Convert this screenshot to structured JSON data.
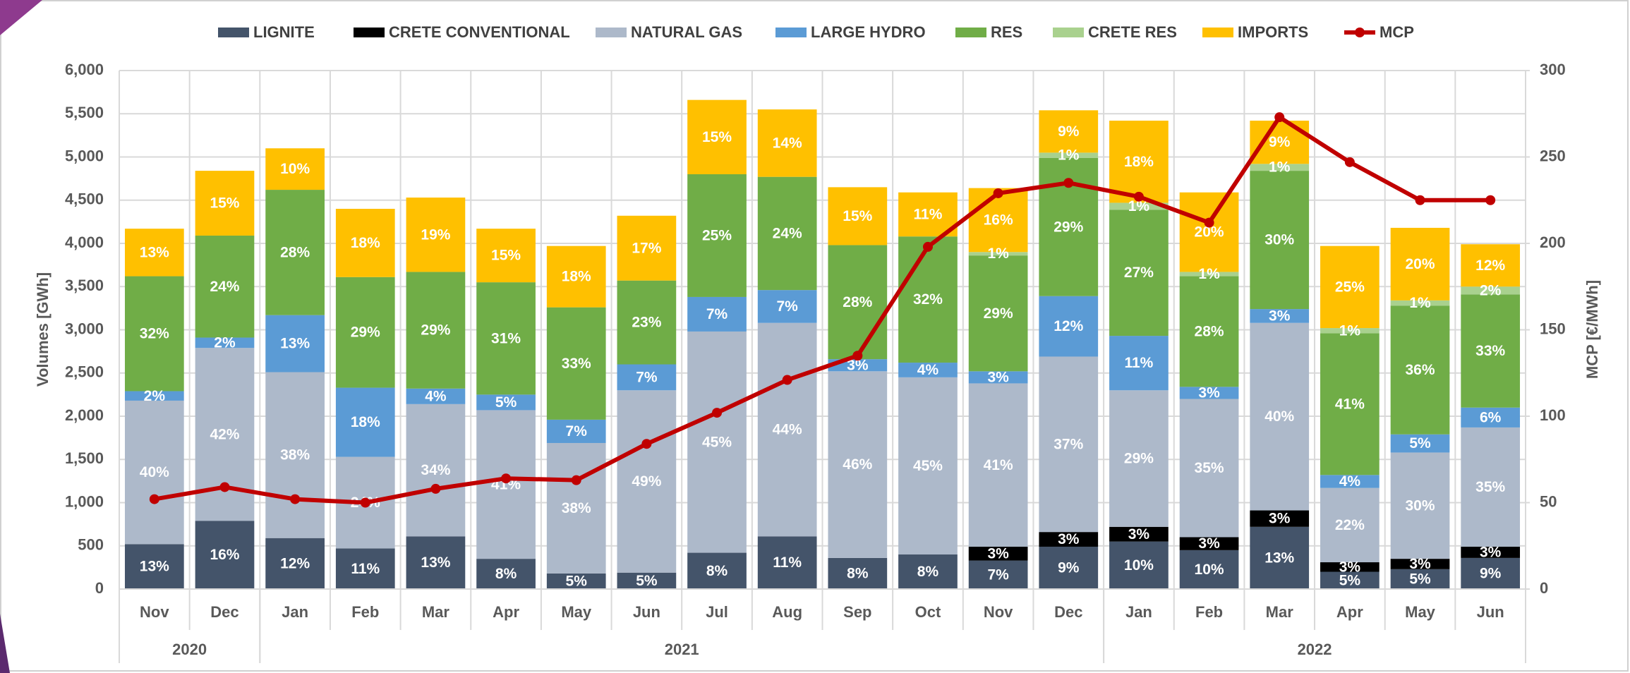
{
  "chart_data": {
    "type": "bar",
    "stacked": true,
    "categories": [
      "Nov",
      "Dec",
      "Jan",
      "Feb",
      "Mar",
      "Apr",
      "May",
      "Jun",
      "Jul",
      "Aug",
      "Sep",
      "Oct",
      "Nov",
      "Dec",
      "Jan",
      "Feb",
      "Mar",
      "Apr",
      "May",
      "Jun"
    ],
    "year_groups": [
      {
        "label": "2020",
        "count": 2
      },
      {
        "label": "2021",
        "count": 12
      },
      {
        "label": "2022",
        "count": 6
      }
    ],
    "ylabel": "Volumes [GWh]",
    "y2label": "MCP [€/MWh]",
    "ylim": [
      0,
      6000
    ],
    "yticks": [
      0,
      {
        "value": 500,
        "label": "500"
      },
      {
        "value": 1000,
        "label": "1,000"
      },
      {
        "value": 1500,
        "label": "1,500"
      },
      {
        "value": 2000,
        "label": "2,000"
      },
      {
        "value": 2500,
        "label": "2,500"
      },
      {
        "value": 3000,
        "label": "3,000"
      },
      {
        "value": 3500,
        "label": "3,500"
      },
      {
        "value": 4000,
        "label": "4,000"
      },
      {
        "value": 4500,
        "label": "4,500"
      },
      {
        "value": 5000,
        "label": "5,000"
      },
      {
        "value": 5500,
        "label": "5,500"
      },
      {
        "value": 6000,
        "label": "6,000"
      }
    ],
    "y2lim": [
      0,
      300
    ],
    "y2ticks": [
      0,
      50,
      100,
      150,
      200,
      250,
      300
    ],
    "grid": true,
    "legend": "top",
    "series": [
      {
        "name": "LIGNITE",
        "color": "#44546a",
        "values": [
          520,
          790,
          590,
          470,
          610,
          350,
          180,
          190,
          420,
          610,
          360,
          400,
          330,
          490,
          550,
          450,
          720,
          200,
          230,
          360
        ],
        "share_labels": [
          "13%",
          "16%",
          "12%",
          "11%",
          "13%",
          "8%",
          "5%",
          "5%",
          "8%",
          "11%",
          "8%",
          "8%",
          "7%",
          "9%",
          "10%",
          "10%",
          "13%",
          "5%",
          "5%",
          "9%"
        ]
      },
      {
        "name": "CRETE CONVENTIONAL",
        "color": "#000000",
        "values": [
          null,
          null,
          null,
          null,
          null,
          null,
          null,
          null,
          null,
          null,
          null,
          null,
          160,
          170,
          170,
          150,
          190,
          110,
          120,
          130
        ],
        "share_labels": [
          null,
          null,
          null,
          null,
          null,
          null,
          null,
          null,
          null,
          null,
          null,
          null,
          "3%",
          "3%",
          "3%",
          "3%",
          "3%",
          "3%",
          "3%",
          "3%"
        ]
      },
      {
        "name": "NATURAL GAS",
        "color": "#adb9ca",
        "values": [
          1660,
          2000,
          1920,
          1060,
          1530,
          1720,
          1510,
          2110,
          2560,
          2470,
          2160,
          2050,
          1890,
          2030,
          1580,
          1600,
          2170,
          860,
          1230,
          1380
        ],
        "share_labels": [
          "40%",
          "42%",
          "38%",
          "24%",
          "34%",
          "41%",
          "38%",
          "49%",
          "45%",
          "44%",
          "46%",
          "45%",
          "41%",
          "37%",
          "29%",
          "35%",
          "40%",
          "22%",
          "30%",
          "35%"
        ]
      },
      {
        "name": "LARGE HYDRO",
        "color": "#5b9bd5",
        "values": [
          110,
          120,
          660,
          800,
          180,
          180,
          270,
          300,
          400,
          380,
          140,
          170,
          140,
          700,
          630,
          140,
          160,
          150,
          210,
          230
        ],
        "share_labels": [
          "2%",
          "2%",
          "13%",
          "18%",
          "4%",
          "5%",
          "7%",
          "7%",
          "7%",
          "7%",
          "3%",
          "4%",
          "3%",
          "12%",
          "11%",
          "3%",
          "3%",
          "4%",
          "5%",
          "6%"
        ]
      },
      {
        "name": "RES",
        "color": "#70ad47",
        "values": [
          1330,
          1180,
          1450,
          1280,
          1350,
          1300,
          1300,
          970,
          1420,
          1310,
          1320,
          1460,
          1340,
          1600,
          1460,
          1280,
          1600,
          1640,
          1490,
          1310
        ],
        "share_labels": [
          "32%",
          "24%",
          "28%",
          "29%",
          "29%",
          "31%",
          "33%",
          "23%",
          "25%",
          "24%",
          "28%",
          "32%",
          "29%",
          "29%",
          "27%",
          "28%",
          "30%",
          "41%",
          "36%",
          "33%"
        ]
      },
      {
        "name": "CRETE RES",
        "color": "#a9d18e",
        "values": [
          null,
          null,
          null,
          null,
          null,
          null,
          null,
          null,
          null,
          null,
          null,
          null,
          40,
          60,
          80,
          50,
          80,
          60,
          60,
          90
        ],
        "share_labels": [
          null,
          null,
          null,
          null,
          null,
          null,
          null,
          null,
          null,
          null,
          null,
          null,
          "1%",
          "1%",
          "1%",
          "1%",
          "1%",
          "1%",
          "1%",
          "2%"
        ]
      },
      {
        "name": "IMPORTS",
        "color": "#ffc000",
        "values": [
          550,
          750,
          480,
          790,
          860,
          620,
          710,
          750,
          860,
          780,
          670,
          510,
          740,
          490,
          950,
          920,
          500,
          950,
          840,
          490
        ],
        "share_labels": [
          "13%",
          "15%",
          "10%",
          "18%",
          "19%",
          "15%",
          "18%",
          "17%",
          "15%",
          "14%",
          "15%",
          "11%",
          "16%",
          "9%",
          "18%",
          "20%",
          "9%",
          "25%",
          "20%",
          "12%"
        ]
      },
      {
        "name": "MCP",
        "type": "line",
        "axis": "y2",
        "color": "#c00000",
        "values": [
          52,
          59,
          52,
          50,
          58,
          64,
          63,
          84,
          102,
          121,
          135,
          198,
          229,
          235,
          227,
          212,
          273,
          247,
          225,
          225
        ]
      }
    ]
  }
}
